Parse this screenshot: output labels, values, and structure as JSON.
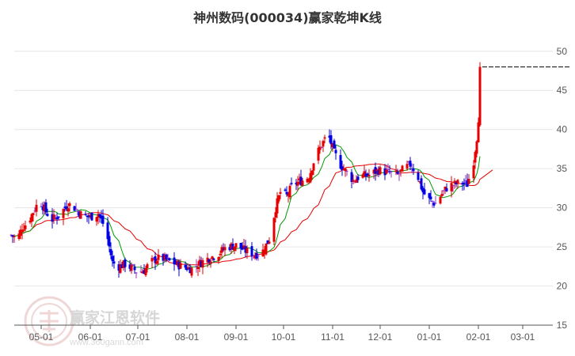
{
  "chart_data": {
    "type": "candlestick",
    "title": "神州数码(000034)赢家乾坤K线",
    "xlabel": "",
    "ylabel": "",
    "ylim": [
      15,
      52
    ],
    "y_ticks": [
      15,
      20,
      25,
      30,
      35,
      40,
      45,
      50
    ],
    "x_tick_labels": [
      "05-01",
      "06-01",
      "07-01",
      "08-01",
      "09-01",
      "10-01",
      "11-01",
      "12-01",
      "01-01",
      "02-01",
      "03-01"
    ],
    "x_tick_days": [
      0,
      31,
      61,
      92,
      123,
      153,
      184,
      214,
      245,
      276,
      304
    ],
    "grid": true,
    "colors": {
      "up": "#e60000",
      "down": "#0000e6",
      "neutral": "#9933cc",
      "ma_short": "#009900",
      "ma_long": "#e60000",
      "grid": "#e6e6e6"
    },
    "price_anchor": {
      "day": -12,
      "close": 26.5
    },
    "price_path": [
      [
        -12,
        26.5
      ],
      [
        -8,
        26.0
      ],
      [
        -5,
        27.5
      ],
      [
        -2,
        28.0
      ],
      [
        2,
        29.5
      ],
      [
        6,
        31.0
      ],
      [
        10,
        29.5
      ],
      [
        14,
        28.5
      ],
      [
        18,
        29.0
      ],
      [
        24,
        30.5
      ],
      [
        28,
        30.0
      ],
      [
        33,
        29.0
      ],
      [
        38,
        28.8
      ],
      [
        43,
        29.3
      ],
      [
        46,
        28.0
      ],
      [
        49,
        26.0
      ],
      [
        52,
        23.0
      ],
      [
        56,
        22.5
      ],
      [
        60,
        22.8
      ],
      [
        64,
        22.3
      ],
      [
        68,
        21.8
      ],
      [
        72,
        22.0
      ],
      [
        76,
        23.0
      ],
      [
        80,
        23.5
      ],
      [
        84,
        23.5
      ],
      [
        90,
        23.0
      ],
      [
        96,
        22.5
      ],
      [
        102,
        22.2
      ],
      [
        106,
        22.8
      ],
      [
        112,
        23.5
      ],
      [
        118,
        24.0
      ],
      [
        124,
        25.0
      ],
      [
        130,
        25.2
      ],
      [
        136,
        24.5
      ],
      [
        142,
        24.0
      ],
      [
        147,
        24.5
      ],
      [
        151,
        26.0
      ],
      [
        155,
        30.0
      ],
      [
        158,
        32.0
      ],
      [
        162,
        31.5
      ],
      [
        166,
        33.0
      ],
      [
        172,
        33.5
      ],
      [
        176,
        34.0
      ],
      [
        180,
        36.5
      ],
      [
        184,
        38.0
      ],
      [
        188,
        39.5
      ],
      [
        192,
        37.0
      ],
      [
        196,
        35.5
      ],
      [
        200,
        34.5
      ],
      [
        204,
        33.5
      ],
      [
        208,
        34.0
      ],
      [
        214,
        34.2
      ],
      [
        220,
        34.8
      ],
      [
        226,
        34.5
      ],
      [
        232,
        34.2
      ],
      [
        236,
        35.0
      ],
      [
        240,
        35.5
      ],
      [
        244,
        34.5
      ],
      [
        248,
        32.0
      ],
      [
        252,
        31.0
      ],
      [
        256,
        30.5
      ],
      [
        260,
        31.8
      ],
      [
        264,
        32.8
      ],
      [
        268,
        33.0
      ],
      [
        272,
        33.2
      ],
      [
        276,
        33.0
      ],
      [
        280,
        36.0
      ],
      [
        282,
        39.0
      ],
      [
        284,
        44.0
      ],
      [
        286,
        47.0
      ]
    ],
    "last_close": 48.0,
    "candle_seed": 7
  }
}
